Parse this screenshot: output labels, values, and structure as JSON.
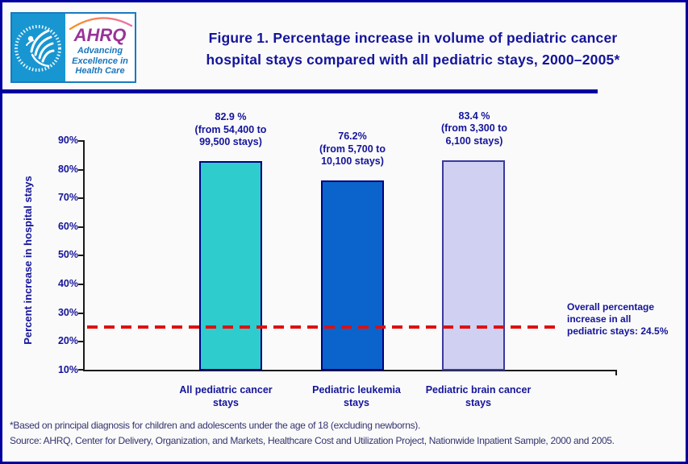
{
  "header": {
    "logo": {
      "hhs_seal_ring_text": "DEPARTMENT OF HEALTH & HUMAN SERVICES • USA",
      "ahrq_acronym": "AHRQ",
      "tagline_line1": "Advancing",
      "tagline_line2": "Excellence in",
      "tagline_line3": "Health Care"
    },
    "title_line1": "Figure 1. Percentage increase in volume of pediatric cancer",
    "title_line2": "hospital stays compared with all pediatric stays, 2000–2005*"
  },
  "chart_data": {
    "type": "bar",
    "title": "Figure 1. Percentage increase in volume of pediatric cancer hospital stays compared with all pediatric stays, 2000–2005*",
    "xlabel": "",
    "ylabel": "Percent increase in hospital stays",
    "ylim": [
      10,
      90
    ],
    "ytick_labels": [
      "90%",
      "80%",
      "70%",
      "60%",
      "50%",
      "40%",
      "30%",
      "20%",
      "10%"
    ],
    "grid": false,
    "legend": "none",
    "categories": [
      "All pediatric cancer stays",
      "Pediatric leukemia stays",
      "Pediatric brain cancer stays"
    ],
    "values": [
      82.9,
      76.2,
      83.4
    ],
    "bars": [
      {
        "value_label": "82.9 %",
        "detail_line1": "(from 54,400 to",
        "detail_line2": "99,500 stays)",
        "category_line1": "All pediatric cancer",
        "category_line2": "stays",
        "fill": "#2ecccc",
        "border": "#000080"
      },
      {
        "value_label": "76.2%",
        "detail_line1": "(from 5,700 to",
        "detail_line2": "10,100 stays)",
        "category_line1": "Pediatric leukemia",
        "category_line2": "stays",
        "fill": "#0a64cc",
        "border": "#000080"
      },
      {
        "value_label": "83.4 %",
        "detail_line1": "(from 3,300 to",
        "detail_line2": "6,100 stays)",
        "category_line1": "Pediatric brain cancer",
        "category_line2": "stays",
        "fill": "#d0d0f2",
        "border": "#3a3a9e"
      }
    ],
    "reference_line": {
      "value": 24.5,
      "color": "#dd1111",
      "label_line1": "Overall percentage",
      "label_line2": "increase in all",
      "label_line3": "pediatric stays: 24.5%"
    }
  },
  "footnotes": {
    "note": "*Based on principal diagnosis for children and adolescents under the age of 18 (excluding newborns).",
    "source": "Source: AHRQ, Center for Delivery, Organization, and Markets, Healthcare Cost and Utilization Project, Nationwide Inpatient Sample, 2000 and 2005."
  },
  "colors": {
    "frame_border": "#0000a0",
    "background": "#fafafa",
    "accent_text": "#14149b",
    "hhs_blue": "#1896d2",
    "ahrq_purple": "#993399",
    "tagline_blue": "#1a75bc",
    "footnote_navy": "#333370",
    "axis": "#1a1a1a",
    "reference_red": "#dd1111"
  }
}
